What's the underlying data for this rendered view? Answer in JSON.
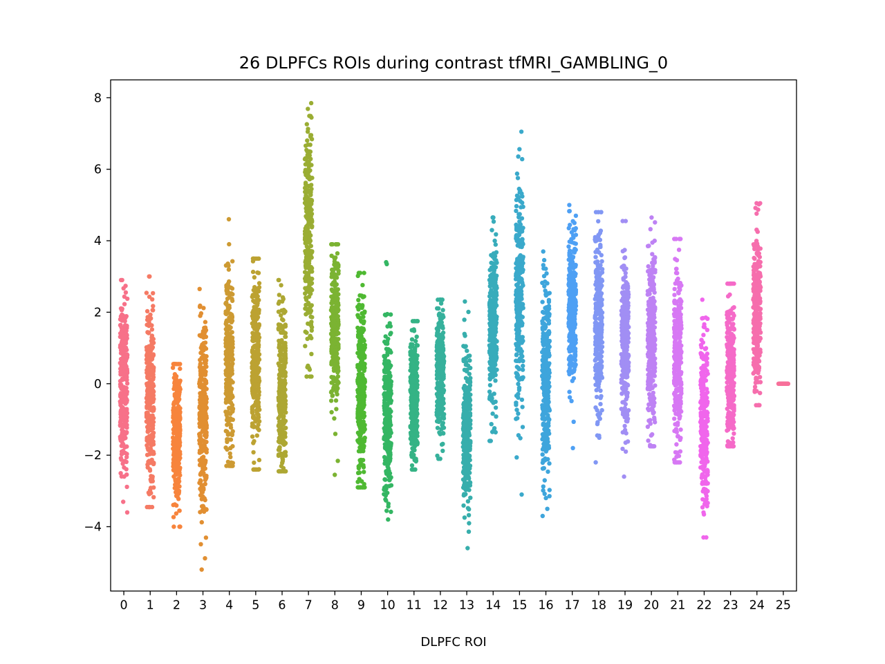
{
  "chart_data": {
    "type": "scatter",
    "subtype": "strip",
    "title": "26 DLPFCs ROIs during contrast tfMRI_GAMBLING_0",
    "xlabel": "DLPFC ROI",
    "ylabel": "",
    "categories": [
      "0",
      "1",
      "2",
      "3",
      "4",
      "5",
      "6",
      "7",
      "8",
      "9",
      "10",
      "11",
      "12",
      "13",
      "14",
      "15",
      "16",
      "17",
      "18",
      "19",
      "20",
      "21",
      "22",
      "23",
      "24",
      "25"
    ],
    "ylim": [
      -5.8,
      8.5
    ],
    "yticks": [
      8,
      6,
      4,
      2,
      0,
      -2,
      -4
    ],
    "ytick_labels": [
      "8",
      "6",
      "4",
      "2",
      "0",
      "−2",
      "−4"
    ],
    "grid": false,
    "legend": "none",
    "colors": [
      "#f77189",
      "#f57a64",
      "#f7843c",
      "#e18f32",
      "#cd9a32",
      "#bca232",
      "#ada733",
      "#9aad33",
      "#7bb332",
      "#4fb932",
      "#34b663",
      "#35b385",
      "#36b19c",
      "#37aeac",
      "#38acbb",
      "#3aa9cb",
      "#3ea5dc",
      "#4ea0f4",
      "#8197f4",
      "#a18ef4",
      "#be82f4",
      "#d778f4",
      "#f066ec",
      "#f56ac8",
      "#f66ead",
      "#f7709a"
    ],
    "series": [
      {
        "name": "0",
        "n": 300,
        "median": 0.0,
        "q1": -0.9,
        "q3": 0.8,
        "min": -3.6,
        "max": 2.9
      },
      {
        "name": "1",
        "n": 300,
        "median": -0.4,
        "q1": -1.3,
        "q3": 0.4,
        "min": -3.45,
        "max": 3.0
      },
      {
        "name": "2",
        "n": 300,
        "median": -1.4,
        "q1": -2.1,
        "q3": -0.8,
        "min": -4.0,
        "max": 0.55
      },
      {
        "name": "3",
        "n": 300,
        "median": -1.0,
        "q1": -2.0,
        "q3": -0.2,
        "min": -5.2,
        "max": 2.65
      },
      {
        "name": "4",
        "n": 300,
        "median": 0.6,
        "q1": -0.2,
        "q3": 1.5,
        "min": -2.3,
        "max": 4.6
      },
      {
        "name": "5",
        "n": 300,
        "median": 0.6,
        "q1": -0.3,
        "q3": 1.4,
        "min": -2.4,
        "max": 3.5
      },
      {
        "name": "6",
        "n": 300,
        "median": -0.2,
        "q1": -1.0,
        "q3": 0.6,
        "min": -2.45,
        "max": 2.9
      },
      {
        "name": "7",
        "n": 300,
        "median": 4.2,
        "q1": 3.1,
        "q3": 5.2,
        "min": 0.2,
        "max": 7.85
      },
      {
        "name": "8",
        "n": 300,
        "median": 1.6,
        "q1": 0.9,
        "q3": 2.4,
        "min": -2.55,
        "max": 3.9
      },
      {
        "name": "9",
        "n": 300,
        "median": -0.3,
        "q1": -1.2,
        "q3": 0.6,
        "min": -2.9,
        "max": 3.1
      },
      {
        "name": "10",
        "n": 300,
        "median": -0.9,
        "q1": -1.7,
        "q3": -0.1,
        "min": -3.8,
        "max": 3.4
      },
      {
        "name": "11",
        "n": 300,
        "median": -0.4,
        "q1": -1.0,
        "q3": 0.2,
        "min": -2.4,
        "max": 1.75
      },
      {
        "name": "12",
        "n": 300,
        "median": 0.4,
        "q1": -0.2,
        "q3": 1.0,
        "min": -2.1,
        "max": 2.35
      },
      {
        "name": "13",
        "n": 300,
        "median": -1.3,
        "q1": -2.0,
        "q3": -0.6,
        "min": -4.6,
        "max": 2.3
      },
      {
        "name": "14",
        "n": 300,
        "median": 1.5,
        "q1": 0.7,
        "q3": 2.3,
        "min": -1.6,
        "max": 4.65
      },
      {
        "name": "15",
        "n": 300,
        "median": 2.3,
        "q1": 1.2,
        "q3": 3.3,
        "min": -3.1,
        "max": 7.05
      },
      {
        "name": "16",
        "n": 300,
        "median": 0.1,
        "q1": -0.9,
        "q3": 1.0,
        "min": -3.7,
        "max": 3.7
      },
      {
        "name": "17",
        "n": 300,
        "median": 2.2,
        "q1": 1.5,
        "q3": 3.0,
        "min": -1.8,
        "max": 5.0
      },
      {
        "name": "18",
        "n": 300,
        "median": 1.5,
        "q1": 0.6,
        "q3": 2.3,
        "min": -2.2,
        "max": 4.8
      },
      {
        "name": "19",
        "n": 300,
        "median": 1.2,
        "q1": 0.4,
        "q3": 2.0,
        "min": -2.6,
        "max": 4.55
      },
      {
        "name": "20",
        "n": 300,
        "median": 1.2,
        "q1": 0.3,
        "q3": 2.0,
        "min": -1.75,
        "max": 4.65
      },
      {
        "name": "21",
        "n": 300,
        "median": 0.6,
        "q1": -0.3,
        "q3": 1.4,
        "min": -2.2,
        "max": 4.05
      },
      {
        "name": "22",
        "n": 300,
        "median": -1.0,
        "q1": -1.8,
        "q3": -0.2,
        "min": -4.3,
        "max": 2.35
      },
      {
        "name": "23",
        "n": 300,
        "median": 0.3,
        "q1": -0.4,
        "q3": 1.0,
        "min": -1.75,
        "max": 2.8
      },
      {
        "name": "24",
        "n": 300,
        "median": 2.0,
        "q1": 1.2,
        "q3": 2.7,
        "min": -0.6,
        "max": 5.05
      },
      {
        "name": "25",
        "n": 40,
        "median": 0.0,
        "q1": 0.0,
        "q3": 0.0,
        "min": 0.0,
        "max": 0.0
      }
    ]
  }
}
